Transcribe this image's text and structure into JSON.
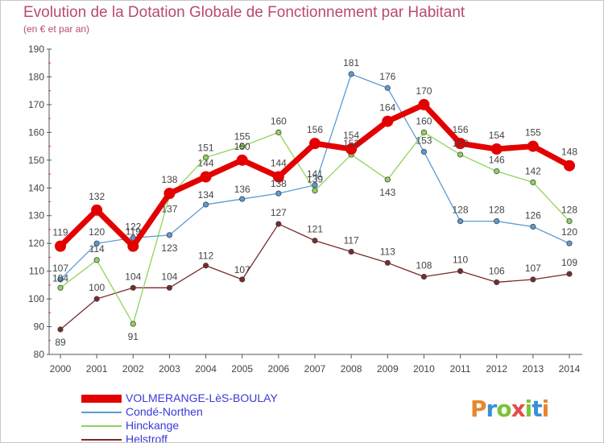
{
  "header": {
    "title": "Evolution de la Dotation Globale de Fonctionnement par Habitant",
    "subtitle": "(en € et par an)"
  },
  "logo": {
    "text": "Proxiti",
    "colors": [
      "#e8862c",
      "#3a8fd8",
      "#7cc23a",
      "#e84a4a"
    ]
  },
  "chart_data": {
    "type": "line",
    "x": [
      2000,
      2001,
      2002,
      2003,
      2004,
      2005,
      2006,
      2007,
      2008,
      2009,
      2010,
      2011,
      2012,
      2013,
      2014
    ],
    "ylim": [
      80,
      190
    ],
    "yticks": [
      80,
      90,
      100,
      110,
      120,
      130,
      140,
      150,
      160,
      170,
      180,
      190
    ],
    "grid": false,
    "legend_position": "bottom-left",
    "series": [
      {
        "name": "VOLMERANGE-LèS-BOULAY",
        "color": "#e30000",
        "values": [
          119,
          132,
          119,
          138,
          144,
          150,
          144,
          156,
          154,
          164,
          170,
          156,
          154,
          155,
          148
        ]
      },
      {
        "name": "Condé-Northen",
        "color": "#5b9bd5",
        "values": [
          107,
          120,
          122,
          123,
          134,
          136,
          138,
          141,
          181,
          176,
          153,
          128,
          128,
          126,
          120
        ]
      },
      {
        "name": "Hinckange",
        "color": "#8fd45c",
        "values": [
          104,
          114,
          91,
          137,
          151,
          155,
          160,
          139,
          152,
          143,
          160,
          152,
          146,
          142,
          128
        ]
      },
      {
        "name": "Helstroff",
        "color": "#7a2a2a",
        "values": [
          89,
          100,
          104,
          104,
          112,
          107,
          127,
          121,
          117,
          113,
          108,
          110,
          106,
          107,
          109
        ]
      }
    ]
  }
}
